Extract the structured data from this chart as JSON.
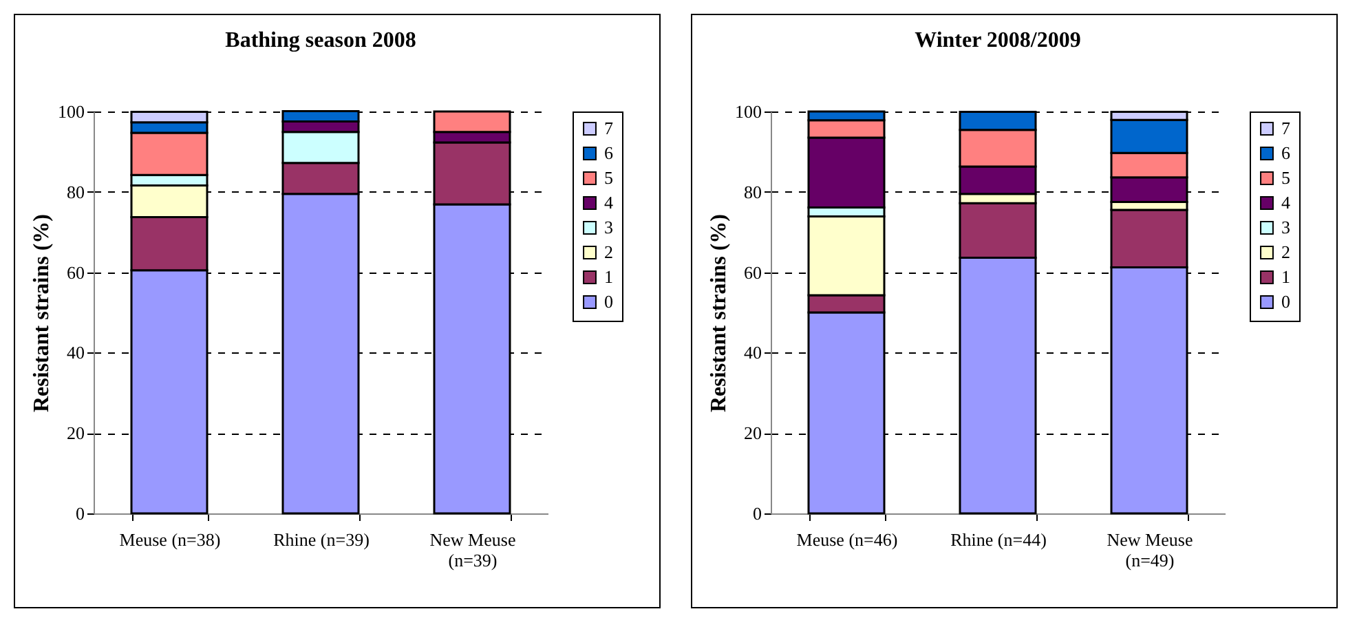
{
  "chart_data": [
    {
      "type": "bar",
      "title": "Bathing season 2008",
      "ylabel": "Resistant strains (%)",
      "categories": [
        "Meuse (n=38)",
        "Rhine (n=39)",
        "New Meuse (n=39)"
      ],
      "stacked": true,
      "ylim": [
        0,
        100
      ],
      "yticks": [
        0,
        20,
        40,
        60,
        80,
        100
      ],
      "grid": "y",
      "legend": "right",
      "series": [
        {
          "name": "0",
          "color": "#9999ff",
          "values": [
            60.5,
            79.5,
            76.9
          ]
        },
        {
          "name": "1",
          "color": "#993366",
          "values": [
            13.2,
            7.7,
            15.4
          ]
        },
        {
          "name": "2",
          "color": "#ffffcc",
          "values": [
            7.9,
            null,
            null
          ]
        },
        {
          "name": "3",
          "color": "#ccffff",
          "values": [
            2.6,
            7.7,
            null
          ]
        },
        {
          "name": "4",
          "color": "#660066",
          "values": [
            null,
            2.6,
            2.6
          ]
        },
        {
          "name": "5",
          "color": "#ff8080",
          "values": [
            10.5,
            null,
            5.1
          ]
        },
        {
          "name": "6",
          "color": "#0066cc",
          "values": [
            2.6,
            2.6,
            null
          ]
        },
        {
          "name": "7",
          "color": "#ccccff",
          "values": [
            2.6,
            null,
            null
          ]
        }
      ]
    },
    {
      "type": "bar",
      "title": "Winter 2008/2009",
      "ylabel": "Resistant strains (%)",
      "categories": [
        "Meuse (n=46)",
        "Rhine (n=44)",
        "New Meuse (n=49)"
      ],
      "stacked": true,
      "ylim": [
        0,
        100
      ],
      "yticks": [
        0,
        20,
        40,
        60,
        80,
        100
      ],
      "grid": "y",
      "legend": "right",
      "series": [
        {
          "name": "0",
          "color": "#9999ff",
          "values": [
            50.0,
            63.6,
            61.2
          ]
        },
        {
          "name": "1",
          "color": "#993366",
          "values": [
            4.3,
            13.6,
            14.3
          ]
        },
        {
          "name": "2",
          "color": "#ffffcc",
          "values": [
            19.6,
            2.3,
            2.0
          ]
        },
        {
          "name": "3",
          "color": "#ccffff",
          "values": [
            2.2,
            null,
            null
          ]
        },
        {
          "name": "4",
          "color": "#660066",
          "values": [
            17.4,
            6.8,
            6.1
          ]
        },
        {
          "name": "5",
          "color": "#ff8080",
          "values": [
            4.3,
            9.1,
            6.1
          ]
        },
        {
          "name": "6",
          "color": "#0066cc",
          "values": [
            2.2,
            4.5,
            8.2
          ]
        },
        {
          "name": "7",
          "color": "#ccccff",
          "values": [
            null,
            null,
            2.0
          ]
        }
      ]
    }
  ]
}
